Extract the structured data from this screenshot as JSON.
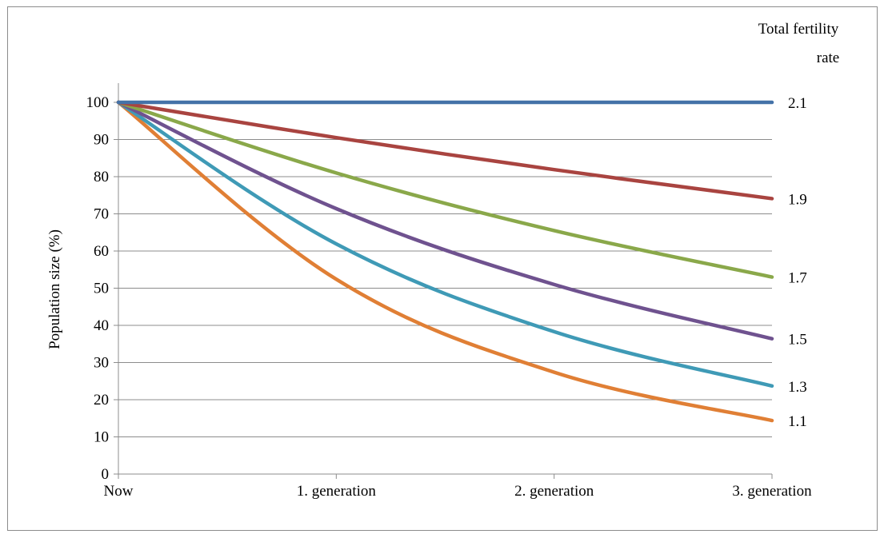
{
  "chart_data": {
    "type": "line",
    "title": "",
    "ylabel": "Population size (%)",
    "xlabel": "",
    "categories": [
      "Now",
      "1. generation",
      "2. generation",
      "3. generation"
    ],
    "legend_title_line1": "Total fertility",
    "legend_title_line2": "rate",
    "ylim": [
      0,
      100
    ],
    "yticks": [
      0,
      10,
      20,
      30,
      40,
      50,
      60,
      70,
      80,
      90,
      100
    ],
    "grid": true,
    "legend_placement": "right, labels at line ends",
    "series": [
      {
        "name": "2.1",
        "color": "#4472a8",
        "values": [
          100,
          100,
          100,
          100
        ]
      },
      {
        "name": "1.9",
        "color": "#a94440",
        "values": [
          100,
          90.5,
          81.9,
          74.1
        ]
      },
      {
        "name": "1.7",
        "color": "#8aa84a",
        "values": [
          100,
          81,
          65.5,
          53
        ]
      },
      {
        "name": "1.5",
        "color": "#6f528f",
        "values": [
          100,
          71.4,
          51,
          36.4
        ]
      },
      {
        "name": "1.3",
        "color": "#3f9ab6",
        "values": [
          100,
          61.9,
          38.3,
          23.7
        ]
      },
      {
        "name": "1.1",
        "color": "#e07f35",
        "values": [
          100,
          52.4,
          27.4,
          14.4
        ]
      }
    ]
  }
}
